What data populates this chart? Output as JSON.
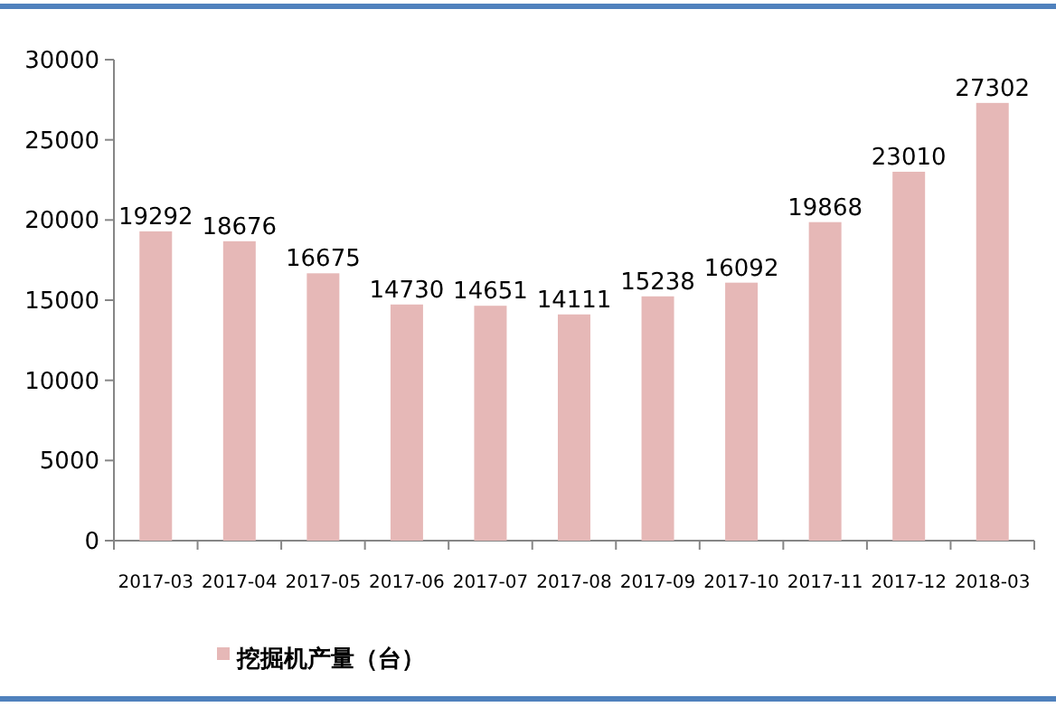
{
  "chart_data": {
    "type": "bar",
    "categories": [
      "2017-03",
      "2017-04",
      "2017-05",
      "2017-06",
      "2017-07",
      "2017-08",
      "2017-09",
      "2017-10",
      "2017-11",
      "2017-12",
      "2018-03"
    ],
    "series": [
      {
        "name": "挖掘机产量（台）",
        "color": "#e6b8b7",
        "values": [
          19292,
          18676,
          16675,
          14730,
          14651,
          14111,
          15238,
          16092,
          19868,
          23010,
          27302
        ]
      }
    ],
    "ylim": [
      0,
      30000
    ],
    "yticks": [
      0,
      5000,
      10000,
      15000,
      20000,
      25000,
      30000
    ],
    "data_labels": true,
    "legend": "bottom left"
  }
}
